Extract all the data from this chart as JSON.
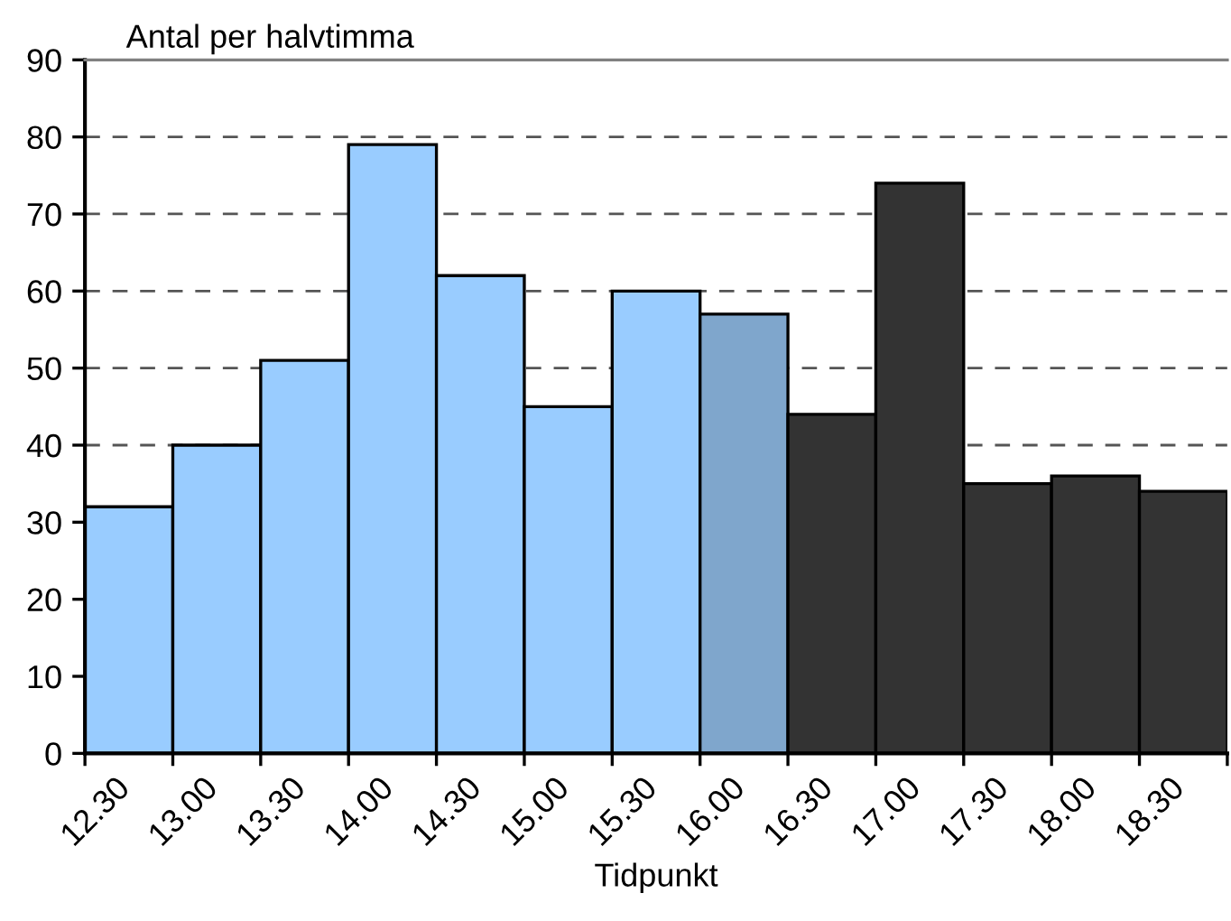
{
  "chart_data": {
    "type": "bar",
    "xlabel": "Tidpunkt",
    "ylabel": "Antal per halvtimma",
    "categories": [
      "12.30",
      "13.00",
      "13.30",
      "14.00",
      "14.30",
      "15.00",
      "15.30",
      "16.00",
      "16.30",
      "17.00",
      "17.30",
      "18.00",
      "18.30"
    ],
    "values": [
      32,
      40,
      51,
      79,
      62,
      45,
      60,
      57,
      44,
      74,
      35,
      36,
      34
    ],
    "colors": [
      "#99ccff",
      "#99ccff",
      "#99ccff",
      "#99ccff",
      "#99ccff",
      "#99ccff",
      "#99ccff",
      "#7fa6cc",
      "#333333",
      "#333333",
      "#333333",
      "#333333",
      "#333333"
    ],
    "ylim": [
      0,
      90
    ],
    "yticks": [
      0,
      10,
      20,
      30,
      40,
      50,
      60,
      70,
      80,
      90
    ],
    "grid": "y",
    "line_style": "dashed"
  }
}
